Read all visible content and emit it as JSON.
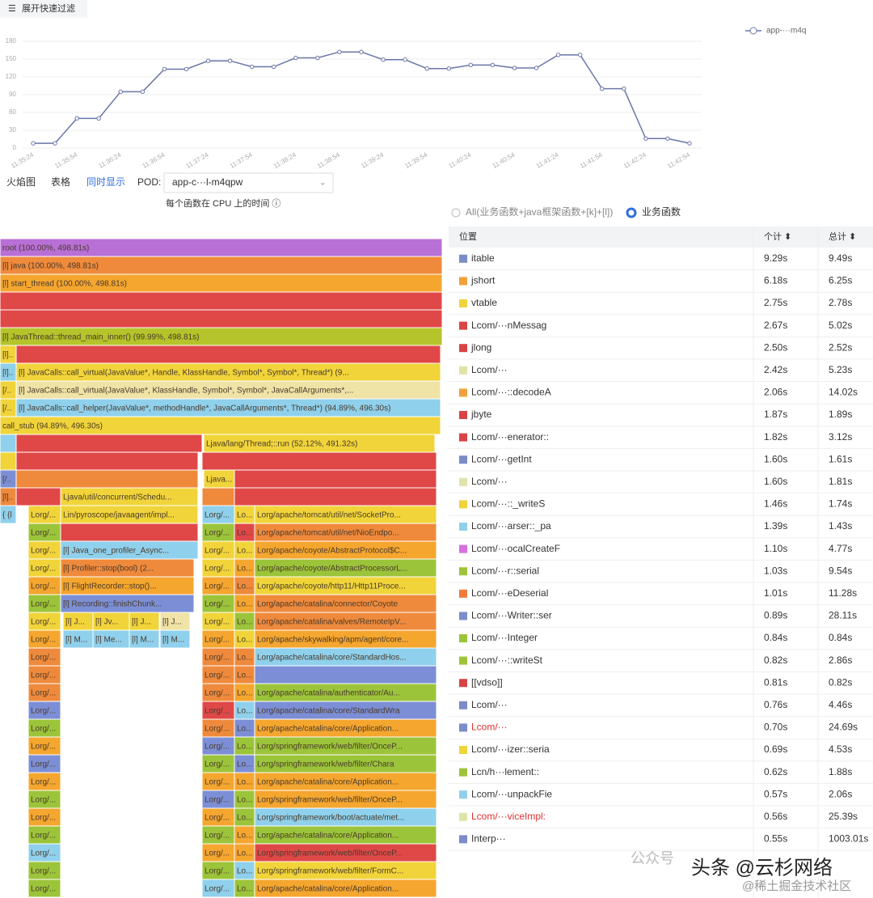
{
  "toolbar": {
    "filter_button": "展开快速过滤"
  },
  "chart_data": {
    "type": "line",
    "categories": [
      "11:35:24",
      null,
      "11:35:54",
      null,
      "11:36:24",
      null,
      "11:36:54",
      null,
      "11:37:24",
      null,
      "11:37:54",
      null,
      "11:38:24",
      null,
      "11:38:54",
      null,
      "11:39:24",
      null,
      "11:39:54",
      null,
      "11:40:24",
      null,
      "11:40:54",
      null,
      "11:41:24",
      null,
      "11:41:54",
      null,
      "11:42:24",
      null,
      "11:42:54"
    ],
    "series": [
      {
        "name": "app-···m4q",
        "color": "#6b76a8",
        "values": [
          8,
          8,
          50,
          50,
          95,
          95,
          133,
          133,
          147,
          147,
          137,
          137,
          152,
          152,
          162,
          162,
          149,
          149,
          134,
          134,
          140,
          140,
          135,
          135,
          157,
          157,
          100,
          100,
          16,
          16,
          8
        ]
      }
    ],
    "ylim": [
      0,
      180
    ],
    "yticks": [
      0,
      30,
      60,
      90,
      120,
      150,
      180
    ],
    "grid": true,
    "legend": "top-right"
  },
  "tabs": {
    "items": [
      "火焰图",
      "表格",
      "同时显示"
    ],
    "active": 2,
    "pod_label": "POD:",
    "pod_value": "app-c···l-m4qpw"
  },
  "flame": {
    "title": "每个函数在 CPU 上的时间 ⓘ",
    "rows": [
      [
        "root (100.00%, 498.81s)"
      ],
      [
        "[l] java (100.00%, 498.81s)"
      ],
      [
        "[l] start_thread (100.00%, 498.81s)"
      ],
      [],
      [],
      [
        "[l] JavaThread::thread_main_inner() (99.99%, 498.81s)"
      ],
      [
        "[l]..."
      ],
      [
        "[l]..",
        "[l] JavaCalls::call_virtual(JavaValue*, Handle, KlassHandle, Symbol*, Symbol*, Thread*) (9..."
      ],
      [
        "[/..",
        "[l] JavaCalls::call_virtual(JavaValue*, KlassHandle, Symbol*, Symbol*, JavaCallArguments*,..."
      ],
      [
        "[/..",
        "[l] JavaCalls::call_helper(JavaValue*, methodHandle*, JavaCallArguments*, Thread*) (94.89%, 496.30s)"
      ],
      [
        "call_stub (94.89%, 496.30s)"
      ],
      [
        "Ljava/lang/Thread;::run (52.12%, 491.32s)"
      ],
      [],
      [
        "[/..",
        "Ljava..."
      ],
      [
        "[l]..",
        "Ljava/util/concurrent/Schedu..."
      ],
      [
        "{ {l",
        "Lorg/...",
        "Lin/pyroscope/javaagent/impl...",
        "Lorg/...",
        "Lo...",
        "Lorg/apache/tomcat/util/net/SocketPro..."
      ],
      [
        "Lorg/...",
        "Lorg/...",
        "Lo...",
        "Lorg/apache/tomcat/util/net/NioEndpo..."
      ],
      [
        "Lorg/...",
        "[l] Java_one_profiler_Async...",
        "Lorg/...",
        "Lo...",
        "Lorg/apache/coyote/AbstractProtocol$C..."
      ],
      [
        "Lorg/...",
        "[l] Profiler::stop(bool) (2...",
        "Lorg/...",
        "Lo...",
        "Lorg/apache/coyote/AbstractProcessorL..."
      ],
      [
        "Lorg/...",
        "[l] FlightRecorder::stop()...",
        "Lorg/...",
        "Lo...",
        "Lorg/apache/coyote/http11/Http11Proce..."
      ],
      [
        "Lorg/...",
        "[l] Recording::finishChunk...",
        "Lorg/...",
        "Lo...",
        "Lorg/apache/catalina/connector/Coyote"
      ],
      [
        "Lorg/...",
        "[l] J...",
        "[l] Jv...",
        "[l] J...",
        "[l] J...",
        "Lorg/...",
        "Lo...",
        "Lorg/apache/catalina/valves/RemoteIpV..."
      ],
      [
        "Lorg/...",
        "[l] M...",
        "[l] Me...",
        "[l] M...",
        "[l] M...",
        "Lorg/...",
        "Lo...",
        "Lorg/apache/skywalking/apm/agent/core..."
      ],
      [
        "Lorg/...",
        "Lorg/...",
        "Lo...",
        "Lorg/apache/catalina/core/StandardHos..."
      ],
      [
        "Lorg/...",
        "Lorg/...",
        "Lo..."
      ],
      [
        "Lorg/...",
        "Lorg/...",
        "Lo...",
        "Lorg/apache/catalina/authenticator/Au..."
      ],
      [
        "Lorg/...",
        "Lorg/...",
        "Lo...",
        "Lorg/apache/catalina/core/StandardWra"
      ],
      [
        "Lorg/...",
        "Lorg/...",
        "Lo...",
        "Lorg/apache/catalina/core/Application..."
      ],
      [
        "Lorg/...",
        "Lorg/...",
        "Lo...",
        "Lorg/springframework/web/filter/OnceP..."
      ],
      [
        "Lorg/...",
        "Lorg/...",
        "Lo...",
        "Lorg/springframework/web/filter/Chara"
      ],
      [
        "Lorg/...",
        "Lorg/...",
        "Lo...",
        "Lorg/apache/catalina/core/Application..."
      ],
      [
        "Lorg/...",
        "Lorg/...",
        "Lo...",
        "Lorg/springframework/web/filter/OnceP..."
      ],
      [
        "Lorg/...",
        "Lorg/...",
        "Lo...",
        "Lorg/springframework/boot/actuate/met..."
      ],
      [
        "Lorg/...",
        "Lorg/...",
        "Lo...",
        "Lorg/apache/catalina/core/Application..."
      ],
      [
        "Lorg/...",
        "Lorg/...",
        "Lo...",
        "Lorg/springframework/web/filter/OnceP..."
      ],
      [
        "Lorg/...",
        "Lorg/...",
        "Lo...",
        "Lorg/springframework/web/filter/FormC..."
      ],
      [
        "Lorg/...",
        "Lorg/...",
        "Lo...",
        "Lorg/apache/catalina/core/Application..."
      ]
    ]
  },
  "table": {
    "radio_all": "All(业务函数+java框架函数+[k]+[l])",
    "radio_biz": "业务函数",
    "headers": [
      "位置",
      "个计 ⬍",
      "总计 ⬍"
    ],
    "rows": [
      {
        "name": "itable",
        "self": "9.29s",
        "total": "9.49s",
        "color": "#7b8cc9"
      },
      {
        "name": "jshort",
        "self": "6.18s",
        "total": "6.25s",
        "color": "#f0a03c"
      },
      {
        "name": "vtable",
        "self": "2.75s",
        "total": "2.78s",
        "color": "#efd43c"
      },
      {
        "name": "Lcom/···nMessag",
        "self": "2.67s",
        "total": "5.02s",
        "color": "#d94444"
      },
      {
        "name": "jlong",
        "self": "2.50s",
        "total": "2.52s",
        "color": "#d94444"
      },
      {
        "name": "Lcom/···",
        "self": "2.42s",
        "total": "5.23s",
        "color": "#dfe3a8"
      },
      {
        "name": "Lcom/···::decodeA",
        "self": "2.06s",
        "total": "14.02s",
        "color": "#f0a03c"
      },
      {
        "name": "jbyte",
        "self": "1.87s",
        "total": "1.89s",
        "color": "#d94444"
      },
      {
        "name": "Lcom/···enerator::",
        "self": "1.82s",
        "total": "3.12s",
        "color": "#d94444"
      },
      {
        "name": "Lcom/···getInt",
        "self": "1.60s",
        "total": "1.61s",
        "color": "#7b8cc9"
      },
      {
        "name": "Lcom/···",
        "self": "1.60s",
        "total": "1.81s",
        "color": "#dfe3a8"
      },
      {
        "name": "Lcom/···::_writeS",
        "self": "1.46s",
        "total": "1.74s",
        "color": "#efd43c"
      },
      {
        "name": "Lcom/···arser::_pa",
        "self": "1.39s",
        "total": "1.43s",
        "color": "#8fd0ec"
      },
      {
        "name": "Lcom/···ocalCreateF",
        "self": "1.10s",
        "total": "4.77s",
        "color": "#d86ee0"
      },
      {
        "name": "Lcom/···r::serial",
        "self": "1.03s",
        "total": "9.54s",
        "color": "#9cc43a"
      },
      {
        "name": "Lcom/···eDeserial",
        "self": "1.01s",
        "total": "11.28s",
        "color": "#ef7a3c"
      },
      {
        "name": "Lcom/···Writer::ser",
        "self": "0.89s",
        "total": "28.11s",
        "color": "#7b8cc9"
      },
      {
        "name": "Lcom/···Integer",
        "self": "0.84s",
        "total": "0.84s",
        "color": "#9cc43a"
      },
      {
        "name": "Lcom/···::writeSt",
        "self": "0.82s",
        "total": "2.86s",
        "color": "#9cc43a"
      },
      {
        "name": "[[vdso]]",
        "self": "0.81s",
        "total": "0.82s",
        "color": "#d94444"
      },
      {
        "name": "Lcom/···",
        "self": "0.76s",
        "total": "4.46s",
        "color": "#7b8cc9"
      },
      {
        "name": "Lcom/···",
        "self": "0.70s",
        "total": "24.69s",
        "color": "#7b8cc9",
        "highlight": true
      },
      {
        "name": "Lcom/···izer::seria",
        "self": "0.69s",
        "total": "4.53s",
        "color": "#efd43c"
      },
      {
        "name": "Lcn/h···lement::",
        "self": "0.62s",
        "total": "1.88s",
        "color": "#9cc43a"
      },
      {
        "name": "Lcom/···unpackFie",
        "self": "0.57s",
        "total": "2.06s",
        "color": "#8fd0ec"
      },
      {
        "name": "Lcom/···viceImpl:",
        "self": "0.56s",
        "total": "25.39s",
        "color": "#dfe3a8",
        "highlight": true
      },
      {
        "name": "Interp···",
        "self": "0.55s",
        "total": "1003.01s",
        "color": "#7b8cc9"
      }
    ]
  },
  "watermark": {
    "main": "头条 @云杉网络",
    "sub": "@稀土掘金技术社区",
    "wx": "公众号"
  }
}
